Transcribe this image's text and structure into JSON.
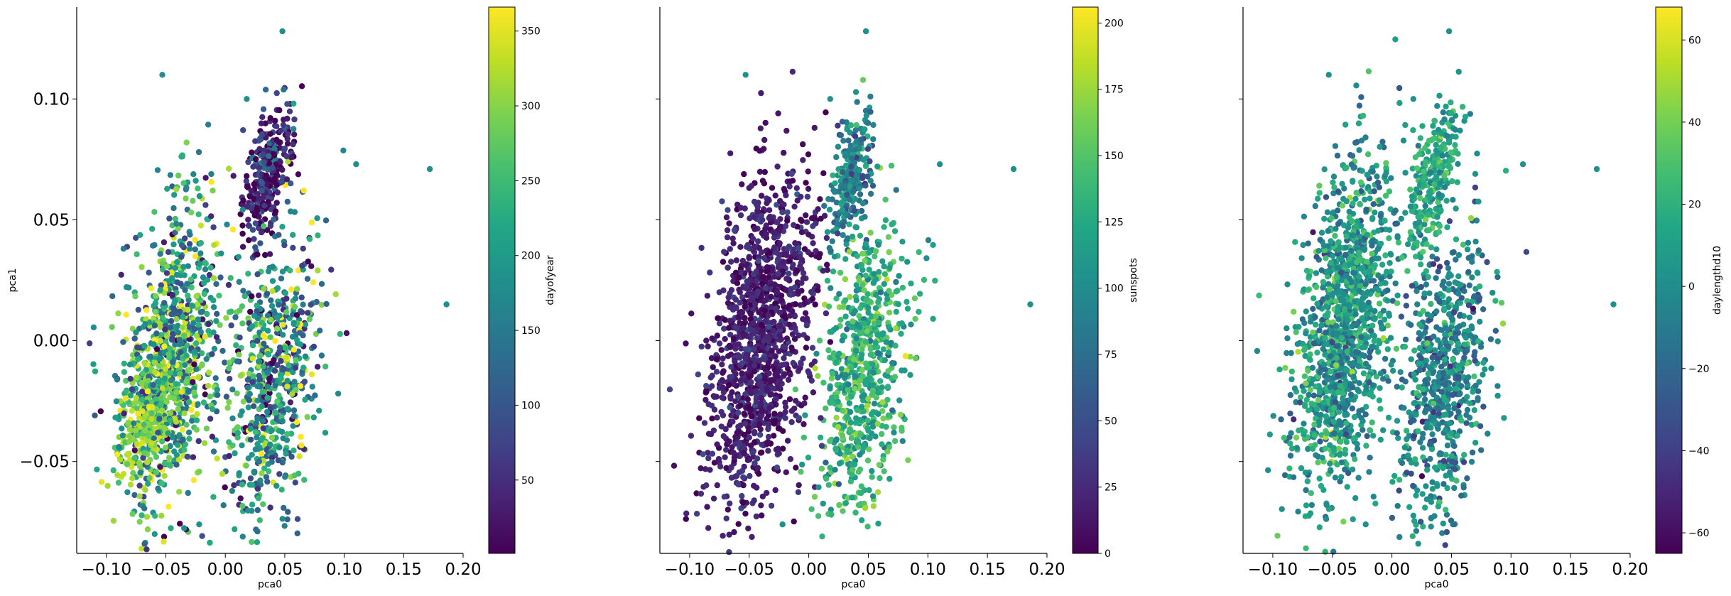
{
  "chart_data": [
    {
      "type": "scatter",
      "xlabel": "pca0",
      "ylabel": "pca1",
      "xlim": [
        -0.125,
        0.2
      ],
      "ylim": [
        -0.088,
        0.138
      ],
      "xticks": [
        -0.1,
        -0.05,
        0.0,
        0.05,
        0.1,
        0.15,
        0.2
      ],
      "xtick_labels": [
        "−0.10",
        "−0.05",
        "0.00",
        "0.05",
        "0.10",
        "0.15",
        "0.20"
      ],
      "yticks": [
        -0.05,
        0.0,
        0.05,
        0.1
      ],
      "ytick_labels": [
        "−0.05",
        "0.00",
        "0.05",
        "0.10"
      ],
      "colorbar": {
        "label": "dayofyear",
        "colormap": "viridis",
        "range": [
          1,
          366
        ],
        "ticks": [
          50,
          100,
          150,
          200,
          250,
          300,
          350
        ],
        "tick_labels": [
          "50",
          "100",
          "150",
          "200",
          "250",
          "300",
          "350"
        ]
      },
      "clusters": [
        {
          "cx": -0.045,
          "cy": -0.005,
          "sx": 0.022,
          "sy": 0.03,
          "slope": 0.55,
          "n": 900,
          "color_mean": 200,
          "color_sd": 90
        },
        {
          "cx": 0.04,
          "cy": -0.018,
          "sx": 0.019,
          "sy": 0.028,
          "slope": 0.5,
          "n": 650,
          "color_mean": 180,
          "color_sd": 100
        },
        {
          "cx": -0.06,
          "cy": -0.028,
          "sx": 0.015,
          "sy": 0.014,
          "slope": 0.6,
          "n": 350,
          "color_mean": 305,
          "color_sd": 30
        },
        {
          "cx": 0.035,
          "cy": 0.068,
          "sx": 0.01,
          "sy": 0.012,
          "slope": 0.8,
          "n": 300,
          "color_mean": 40,
          "color_sd": 60
        }
      ],
      "outliers": [
        [
          0.048,
          0.128
        ],
        [
          -0.053,
          0.11
        ],
        [
          0.172,
          0.071
        ],
        [
          0.186,
          0.015
        ],
        [
          0.11,
          0.073
        ],
        [
          -0.022,
          -0.076
        ],
        [
          0.018,
          0.1
        ]
      ]
    },
    {
      "type": "scatter",
      "xlabel": "pca0",
      "ylabel": "",
      "xlim": [
        -0.125,
        0.2
      ],
      "ylim": [
        -0.088,
        0.138
      ],
      "xticks": [
        -0.1,
        -0.05,
        0.0,
        0.05,
        0.1,
        0.15,
        0.2
      ],
      "xtick_labels": [
        "−0.10",
        "−0.05",
        "0.00",
        "0.05",
        "0.10",
        "0.15",
        "0.20"
      ],
      "yticks": [
        -0.05,
        0.0,
        0.05,
        0.1
      ],
      "ytick_labels": [],
      "colorbar": {
        "label": "sunspots",
        "colormap": "viridis",
        "range": [
          0,
          206
        ],
        "ticks": [
          0,
          25,
          50,
          75,
          100,
          125,
          150,
          175,
          200
        ],
        "tick_labels": [
          "0",
          "25",
          "50",
          "75",
          "100",
          "125",
          "150",
          "175",
          "200"
        ]
      },
      "clusters": [
        {
          "cx": -0.04,
          "cy": 0.0,
          "sx": 0.022,
          "sy": 0.032,
          "slope": 0.6,
          "n": 1300,
          "color_mean": 18,
          "color_sd": 14
        },
        {
          "cx": 0.045,
          "cy": -0.015,
          "sx": 0.019,
          "sy": 0.028,
          "slope": 0.55,
          "n": 700,
          "color_mean": 130,
          "color_sd": 25
        },
        {
          "cx": 0.035,
          "cy": 0.068,
          "sx": 0.01,
          "sy": 0.012,
          "slope": 0.8,
          "n": 250,
          "color_mean": 90,
          "color_sd": 25
        }
      ],
      "outliers": [
        [
          0.048,
          0.128
        ],
        [
          -0.053,
          0.11
        ],
        [
          0.172,
          0.071
        ],
        [
          0.186,
          0.015
        ],
        [
          0.11,
          0.073
        ],
        [
          -0.022,
          -0.076
        ],
        [
          0.018,
          0.1
        ]
      ]
    },
    {
      "type": "scatter",
      "xlabel": "pca0",
      "ylabel": "",
      "xlim": [
        -0.125,
        0.2
      ],
      "ylim": [
        -0.088,
        0.138
      ],
      "xticks": [
        -0.1,
        -0.05,
        0.0,
        0.05,
        0.1,
        0.15,
        0.2
      ],
      "xtick_labels": [
        "−0.10",
        "−0.05",
        "0.00",
        "0.05",
        "0.10",
        "0.15",
        "0.20"
      ],
      "yticks": [
        -0.05,
        0.0,
        0.05,
        0.1
      ],
      "ytick_labels": [],
      "colorbar": {
        "label": "daylengthd10",
        "colormap": "viridis",
        "range": [
          -65,
          68
        ],
        "ticks": [
          -60,
          -40,
          -20,
          0,
          20,
          40,
          60
        ],
        "tick_labels": [
          "−60",
          "−40",
          "−20",
          "0",
          "20",
          "40",
          "60"
        ]
      },
      "clusters": [
        {
          "cx": -0.04,
          "cy": 0.005,
          "sx": 0.022,
          "sy": 0.032,
          "slope": 0.6,
          "n": 1300,
          "color_mean": 5,
          "color_sd": 18
        },
        {
          "cx": 0.045,
          "cy": -0.015,
          "sx": 0.019,
          "sy": 0.028,
          "slope": 0.55,
          "n": 700,
          "color_mean": -5,
          "color_sd": 18
        },
        {
          "cx": 0.035,
          "cy": 0.068,
          "sx": 0.01,
          "sy": 0.012,
          "slope": 0.8,
          "n": 250,
          "color_mean": 15,
          "color_sd": 12
        }
      ],
      "outliers": [
        [
          0.048,
          0.128
        ],
        [
          -0.053,
          0.11
        ],
        [
          0.172,
          0.071
        ],
        [
          0.186,
          0.015
        ],
        [
          0.11,
          0.073
        ],
        [
          -0.022,
          -0.076
        ],
        [
          0.018,
          0.1
        ]
      ]
    }
  ]
}
